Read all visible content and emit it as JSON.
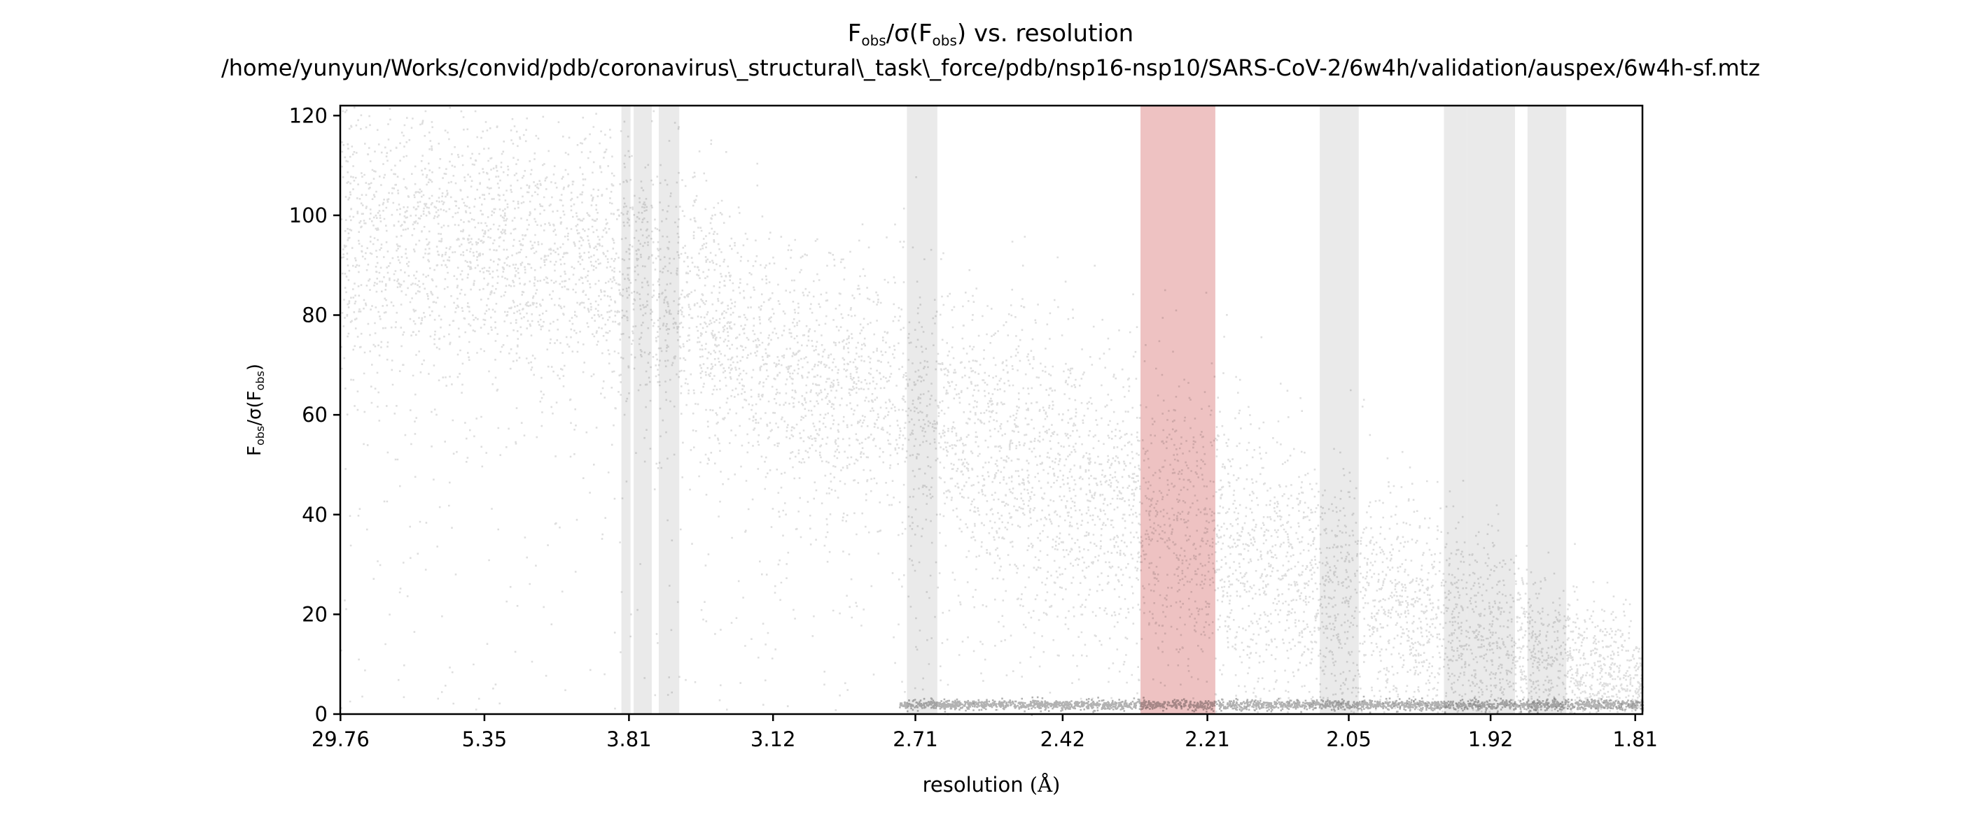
{
  "chart_data": {
    "type": "scatter",
    "title": "F_obs/σ(F_obs) vs. resolution",
    "title_parts": {
      "main": "F",
      "sub1": "obs",
      "mid": "/σ(F",
      "sub2": "obs",
      "tail": ") vs. resolution"
    },
    "subtitle": "/home/yunyun/Works/convid/pdb/coronavirus\\_structural\\_task\\_force/pdb/nsp16-nsp10/SARS-CoV-2/6w4h/validation/auspex/6w4h-sf.mtz",
    "ylabel": "F_obs/σ(F_obs)",
    "ylabel_parts": {
      "main": "F",
      "sub1": "obs",
      "mid": "/σ(F",
      "sub2": "obs",
      "tail": ")"
    },
    "xlabel": "resolution (Å)",
    "xlabel_parts": {
      "text": "resolution ",
      "unit": "(Å)"
    },
    "x_scale": "reciprocal-squared resolution, labelled in Å",
    "x_ticks": [
      "29.76",
      "5.35",
      "3.81",
      "3.12",
      "2.71",
      "2.42",
      "2.21",
      "2.05",
      "1.92",
      "1.81"
    ],
    "ylim": [
      0,
      122
    ],
    "y_ticks": [
      0,
      20,
      40,
      60,
      80,
      100,
      120
    ],
    "grid": false,
    "legend": "none",
    "colors": {
      "points": "#000000",
      "ice_ring_gray": "#d9d9d9",
      "ice_ring_red": "#e39a9a"
    },
    "highlight_bands": [
      {
        "color": "gray",
        "from": 3.86,
        "to": 3.8
      },
      {
        "color": "gray",
        "from": 3.78,
        "to": 3.67
      },
      {
        "color": "gray",
        "from": 3.63,
        "to": 3.52
      },
      {
        "color": "gray",
        "from": 2.73,
        "to": 2.66
      },
      {
        "color": "red",
        "from": 2.3,
        "to": 2.2
      },
      {
        "color": "gray",
        "from": 2.08,
        "to": 2.04
      },
      {
        "color": "gray",
        "from": 1.96,
        "to": 1.94
      },
      {
        "color": "gray",
        "from": 1.94,
        "to": 1.9
      },
      {
        "color": "gray",
        "from": 1.89,
        "to": 1.86
      }
    ],
    "density_profile": [
      {
        "resolution": 29.76,
        "center": 95,
        "spread": 15
      },
      {
        "resolution": 5.35,
        "center": 95,
        "spread": 14
      },
      {
        "resolution": 3.81,
        "center": 90,
        "spread": 14
      },
      {
        "resolution": 3.12,
        "center": 70,
        "spread": 13
      },
      {
        "resolution": 2.71,
        "center": 62,
        "spread": 14
      },
      {
        "resolution": 2.42,
        "center": 48,
        "spread": 15
      },
      {
        "resolution": 2.21,
        "center": 36,
        "spread": 15
      },
      {
        "resolution": 2.05,
        "center": 25,
        "spread": 13
      },
      {
        "resolution": 1.92,
        "center": 15,
        "spread": 10
      },
      {
        "resolution": 1.81,
        "center": 6,
        "spread": 6
      }
    ],
    "baseline_value": 2
  }
}
